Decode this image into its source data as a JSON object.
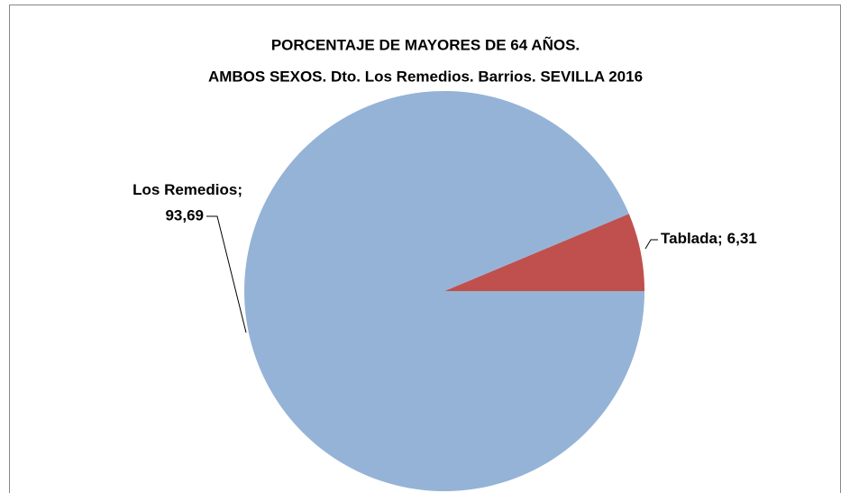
{
  "chart_data": {
    "type": "pie",
    "title": [
      "PORCENTAJE DE MAYORES DE 64 AÑOS.",
      "AMBOS SEXOS. Dto. Los Remedios. Barrios. SEVILLA 2016"
    ],
    "categories": [
      "Los Remedios",
      "Tablada"
    ],
    "values": [
      93.69,
      6.31
    ],
    "value_labels": [
      "93,69",
      "6,31"
    ],
    "label_separator": ";",
    "colors": [
      "#95b3d7",
      "#c0504d"
    ]
  }
}
